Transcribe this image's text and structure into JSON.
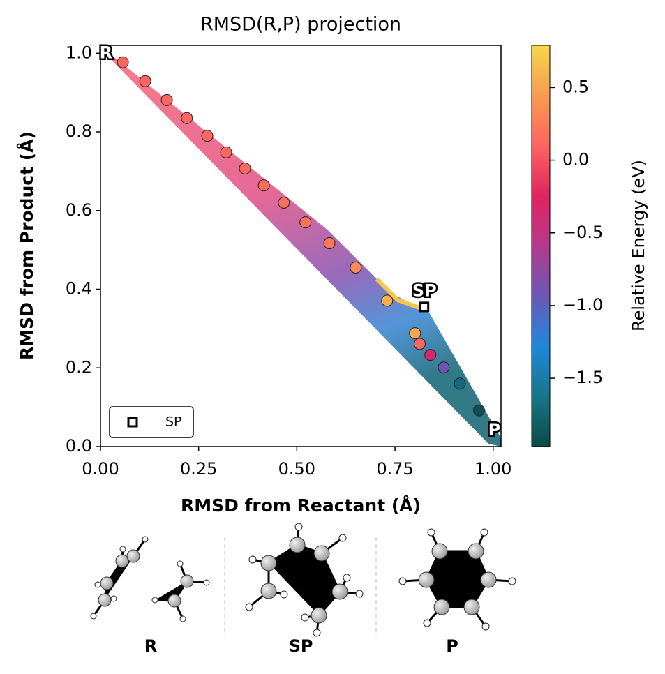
{
  "chart_data": {
    "type": "scatter",
    "title": "RMSD(R,P) projection",
    "xlabel": "RMSD from Reactant (Å)",
    "ylabel": "RMSD from Product (Å)",
    "x": [
      0.057,
      0.114,
      0.169,
      0.22,
      0.272,
      0.32,
      0.368,
      0.416,
      0.467,
      0.522,
      0.583,
      0.65,
      0.73,
      0.801,
      0.813,
      0.84,
      0.874,
      0.915,
      0.964
    ],
    "y": [
      0.977,
      0.929,
      0.881,
      0.835,
      0.79,
      0.748,
      0.707,
      0.664,
      0.62,
      0.57,
      0.517,
      0.455,
      0.371,
      0.288,
      0.261,
      0.233,
      0.201,
      0.16,
      0.092
    ],
    "energy": [
      0.05,
      0.08,
      0.1,
      0.1,
      0.12,
      0.12,
      0.12,
      0.13,
      0.15,
      0.18,
      0.2,
      0.3,
      0.5,
      0.45,
      0.1,
      -0.4,
      -0.9,
      -1.6,
      -1.85
    ],
    "colors": [
      "#fb6461",
      "#fc6660",
      "#fd675f",
      "#fd675f",
      "#fd695e",
      "#fd695e",
      "#fd695e",
      "#fd6a5e",
      "#fd6d5c",
      "#fd735a",
      "#fd7858",
      "#fb8b54",
      "#f5b14b",
      "#f6a84e",
      "#fd675f",
      "#dc266c",
      "#7153b2",
      "#136a7e",
      "#0e5050"
    ],
    "sp": {
      "name": "SP",
      "x": 0.824,
      "y": 0.355
    },
    "annotations": [
      {
        "text": "R",
        "x": 0.014,
        "y": 1.0
      },
      {
        "text": "SP",
        "x": 0.825,
        "y": 0.395
      },
      {
        "text": "P",
        "x": 1.003,
        "y": 0.041
      }
    ],
    "xlim": [
      0,
      1.02
    ],
    "ylim": [
      0,
      1.02
    ],
    "xticks": [
      {
        "value": 0,
        "label": "0.00"
      },
      {
        "value": 0.25,
        "label": "0.25"
      },
      {
        "value": 0.5,
        "label": "0.50"
      },
      {
        "value": 0.75,
        "label": "0.75"
      },
      {
        "value": 1,
        "label": "1.00"
      }
    ],
    "yticks": [
      {
        "value": 0,
        "label": "0.0"
      },
      {
        "value": 0.2,
        "label": "0.2"
      },
      {
        "value": 0.4,
        "label": "0.4"
      },
      {
        "value": 0.6,
        "label": "0.6"
      },
      {
        "value": 0.8,
        "label": "0.8"
      },
      {
        "value": 1,
        "label": "1.0"
      }
    ],
    "colorbar": {
      "label": "Relative Energy (eV)",
      "clim": [
        -1.97,
        0.79
      ],
      "ticks": [
        {
          "value": 0.5,
          "label": "0.5"
        },
        {
          "value": 0,
          "label": "0.0"
        },
        {
          "value": -0.5,
          "label": "−0.5"
        },
        {
          "value": -1,
          "label": "−1.0"
        },
        {
          "value": -1.5,
          "label": "−1.5"
        }
      ],
      "colors": [
        "#0b4a47",
        "#17768a",
        "#2088dc",
        "#6a58b5",
        "#b23a8d",
        "#e0245e",
        "#fe6560",
        "#f79b52",
        "#f5d84a"
      ]
    },
    "legend": "lower left"
  },
  "structures": [
    "R",
    "SP",
    "P"
  ]
}
